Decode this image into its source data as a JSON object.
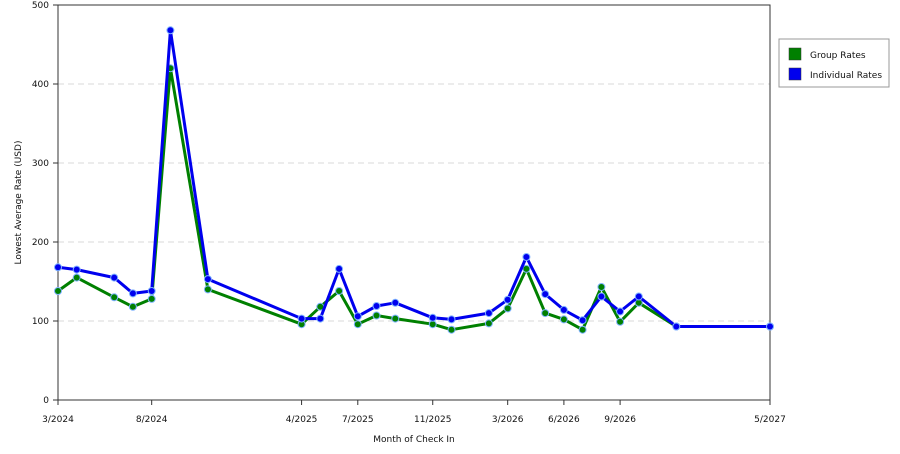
{
  "chart_data": {
    "type": "line",
    "xlabel": "Month of Check In",
    "ylabel": "Lowest Average Rate (USD)",
    "ylim": [
      0,
      500
    ],
    "yticks": [
      0,
      100,
      200,
      300,
      400,
      500
    ],
    "xlim": [
      "3/2024",
      "5/2027"
    ],
    "xticks": [
      "3/2024",
      "8/2024",
      "4/2025",
      "7/2025",
      "11/2025",
      "3/2026",
      "6/2026",
      "9/2026",
      "5/2027"
    ],
    "grid": "horizontal dashed",
    "legend_position": "right",
    "x": [
      "3/2024",
      "4/2024",
      "6/2024",
      "7/2024",
      "8/2024",
      "9/2024",
      "11/2024",
      "4/2025",
      "5/2025",
      "6/2025",
      "7/2025",
      "8/2025",
      "9/2025",
      "11/2025",
      "12/2025",
      "2/2026",
      "3/2026",
      "4/2026",
      "5/2026",
      "6/2026",
      "7/2026",
      "8/2026",
      "9/2026",
      "10/2026",
      "12/2026",
      "5/2027"
    ],
    "series": [
      {
        "name": "Group Rates",
        "color": "#008000",
        "values": [
          138,
          155,
          130,
          118,
          128,
          420,
          140,
          96,
          118,
          138,
          96,
          107,
          103,
          96,
          89,
          97,
          116,
          166,
          110,
          102,
          89,
          143,
          99,
          123,
          93,
          93
        ]
      },
      {
        "name": "Individual Rates",
        "color": "#0000ee",
        "values": [
          168,
          165,
          155,
          135,
          138,
          468,
          153,
          103,
          103,
          166,
          106,
          119,
          123,
          104,
          102,
          110,
          127,
          181,
          134,
          114,
          101,
          131,
          112,
          131,
          93,
          93
        ]
      }
    ]
  }
}
